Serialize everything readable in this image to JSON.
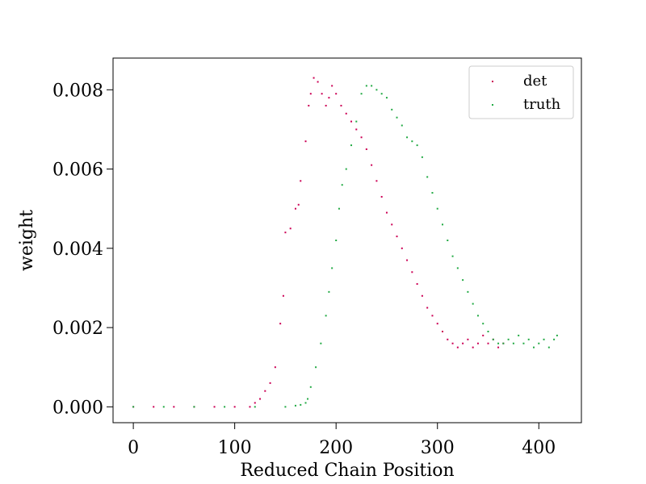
{
  "chart_data": {
    "type": "scatter",
    "title": "",
    "xlabel": "Reduced Chain Position",
    "ylabel": "weight",
    "xlim": [
      -20,
      442
    ],
    "ylim": [
      -0.0004,
      0.0088
    ],
    "xticks": [
      0,
      100,
      200,
      300,
      400
    ],
    "xtick_labels": [
      "0",
      "100",
      "200",
      "300",
      "400"
    ],
    "yticks": [
      0.0,
      0.002,
      0.004,
      0.006,
      0.008
    ],
    "ytick_labels": [
      "0.000",
      "0.002",
      "0.004",
      "0.006",
      "0.008"
    ],
    "grid": false,
    "legend_position": "top-right",
    "series": [
      {
        "name": "det",
        "color": "#cc0055",
        "marker": "pixel",
        "points": [
          [
            0,
            0
          ],
          [
            20,
            0
          ],
          [
            40,
            0
          ],
          [
            60,
            0
          ],
          [
            80,
            0
          ],
          [
            100,
            0
          ],
          [
            115,
            0
          ],
          [
            120,
            0.0001
          ],
          [
            125,
            0.0002
          ],
          [
            130,
            0.0004
          ],
          [
            135,
            0.0006
          ],
          [
            140,
            0.001
          ],
          [
            145,
            0.0021
          ],
          [
            148,
            0.0028
          ],
          [
            150,
            0.0044
          ],
          [
            155,
            0.0045
          ],
          [
            160,
            0.005
          ],
          [
            163,
            0.0051
          ],
          [
            165,
            0.0057
          ],
          [
            170,
            0.0067
          ],
          [
            173,
            0.0076
          ],
          [
            175,
            0.0079
          ],
          [
            178,
            0.0083
          ],
          [
            182,
            0.0082
          ],
          [
            186,
            0.0079
          ],
          [
            190,
            0.0076
          ],
          [
            193,
            0.0078
          ],
          [
            196,
            0.0081
          ],
          [
            200,
            0.0079
          ],
          [
            205,
            0.0076
          ],
          [
            210,
            0.0074
          ],
          [
            215,
            0.0072
          ],
          [
            220,
            0.007
          ],
          [
            225,
            0.0068
          ],
          [
            230,
            0.0065
          ],
          [
            235,
            0.0061
          ],
          [
            240,
            0.0057
          ],
          [
            245,
            0.0053
          ],
          [
            250,
            0.0049
          ],
          [
            255,
            0.0046
          ],
          [
            260,
            0.0043
          ],
          [
            265,
            0.004
          ],
          [
            270,
            0.0037
          ],
          [
            275,
            0.0034
          ],
          [
            280,
            0.0031
          ],
          [
            285,
            0.0028
          ],
          [
            290,
            0.0025
          ],
          [
            295,
            0.0023
          ],
          [
            300,
            0.0021
          ],
          [
            305,
            0.0019
          ],
          [
            310,
            0.0017
          ],
          [
            315,
            0.0016
          ],
          [
            320,
            0.0015
          ],
          [
            325,
            0.0016
          ],
          [
            330,
            0.0017
          ],
          [
            335,
            0.0015
          ],
          [
            340,
            0.0016
          ],
          [
            345,
            0.0018
          ],
          [
            350,
            0.0016
          ],
          [
            355,
            0.0017
          ],
          [
            360,
            0.0015
          ],
          [
            365,
            0.0016
          ]
        ]
      },
      {
        "name": "truth",
        "color": "#22aa44",
        "marker": "pixel",
        "points": [
          [
            0,
            0
          ],
          [
            30,
            0
          ],
          [
            60,
            0
          ],
          [
            90,
            0
          ],
          [
            120,
            0
          ],
          [
            150,
            0
          ],
          [
            160,
            3e-05
          ],
          [
            165,
            5e-05
          ],
          [
            170,
            0.0001
          ],
          [
            172,
            0.0002
          ],
          [
            175,
            0.0005
          ],
          [
            180,
            0.001
          ],
          [
            185,
            0.0016
          ],
          [
            190,
            0.0023
          ],
          [
            193,
            0.0029
          ],
          [
            196,
            0.0035
          ],
          [
            200,
            0.0042
          ],
          [
            203,
            0.005
          ],
          [
            206,
            0.0056
          ],
          [
            210,
            0.006
          ],
          [
            215,
            0.0066
          ],
          [
            220,
            0.0072
          ],
          [
            225,
            0.0079
          ],
          [
            230,
            0.0081
          ],
          [
            235,
            0.0081
          ],
          [
            240,
            0.008
          ],
          [
            245,
            0.0079
          ],
          [
            250,
            0.0078
          ],
          [
            255,
            0.0075
          ],
          [
            260,
            0.0073
          ],
          [
            265,
            0.0071
          ],
          [
            270,
            0.0068
          ],
          [
            275,
            0.0067
          ],
          [
            280,
            0.0066
          ],
          [
            285,
            0.0063
          ],
          [
            290,
            0.0058
          ],
          [
            295,
            0.0054
          ],
          [
            300,
            0.005
          ],
          [
            305,
            0.0046
          ],
          [
            310,
            0.0042
          ],
          [
            315,
            0.0038
          ],
          [
            320,
            0.0035
          ],
          [
            325,
            0.0032
          ],
          [
            330,
            0.0029
          ],
          [
            335,
            0.0026
          ],
          [
            340,
            0.0023
          ],
          [
            345,
            0.0021
          ],
          [
            350,
            0.0019
          ],
          [
            355,
            0.0017
          ],
          [
            360,
            0.0016
          ],
          [
            365,
            0.0016
          ],
          [
            370,
            0.0017
          ],
          [
            375,
            0.0016
          ],
          [
            380,
            0.0018
          ],
          [
            385,
            0.0016
          ],
          [
            390,
            0.0017
          ],
          [
            395,
            0.0015
          ],
          [
            400,
            0.0016
          ],
          [
            405,
            0.0017
          ],
          [
            410,
            0.0015
          ],
          [
            415,
            0.0017
          ],
          [
            418,
            0.0018
          ]
        ]
      }
    ]
  }
}
